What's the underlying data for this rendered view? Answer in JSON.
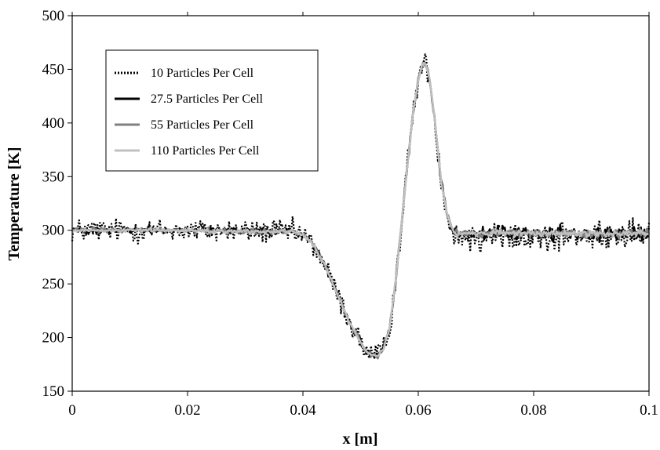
{
  "chart_data": {
    "type": "line",
    "xlabel": "x [m]",
    "ylabel": "Temperature [K]",
    "xlim": [
      0,
      0.1
    ],
    "ylim": [
      150,
      500
    ],
    "x_ticks": [
      0,
      0.02,
      0.04,
      0.06,
      0.08,
      0.1
    ],
    "x_tick_labels": [
      "0",
      "0.02",
      "0.04",
      "0.06",
      "0.08",
      "0.1"
    ],
    "y_ticks": [
      150,
      200,
      250,
      300,
      350,
      400,
      450,
      500
    ],
    "y_tick_labels": [
      "150",
      "200",
      "250",
      "300",
      "350",
      "400",
      "450",
      "500"
    ],
    "grid": false,
    "legend_position": "top-left",
    "profile": {
      "x": [
        0,
        0.01,
        0.02,
        0.03,
        0.038,
        0.04,
        0.042,
        0.044,
        0.046,
        0.048,
        0.05,
        0.051,
        0.052,
        0.053,
        0.054,
        0.055,
        0.056,
        0.057,
        0.058,
        0.059,
        0.06,
        0.0605,
        0.061,
        0.0615,
        0.062,
        0.063,
        0.064,
        0.065,
        0.066,
        0.067,
        0.068,
        0.07,
        0.08,
        0.09,
        0.1
      ],
      "y": [
        300,
        300,
        300,
        299,
        299,
        296,
        285,
        265,
        240,
        215,
        196,
        187,
        183,
        183,
        190,
        208,
        250,
        300,
        355,
        405,
        440,
        452,
        455,
        452,
        440,
        395,
        345,
        315,
        300,
        297,
        297,
        297,
        297,
        297,
        297
      ]
    },
    "series": [
      {
        "name": "10 Particles Per Cell",
        "color": "#000000",
        "style": "dotted",
        "noise": 11,
        "noise_after_shock": 13
      },
      {
        "name": "27.5 Particles Per Cell",
        "color": "#000000",
        "style": "solid",
        "noise": 3,
        "noise_after_shock": 6
      },
      {
        "name": "55 Particles Per Cell",
        "color": "#808080",
        "style": "solid",
        "noise": 2.5,
        "noise_after_shock": 4
      },
      {
        "name": "110 Particles Per Cell",
        "color": "#c0c0c0",
        "style": "solid",
        "noise": 1.8,
        "noise_after_shock": 3
      }
    ]
  }
}
